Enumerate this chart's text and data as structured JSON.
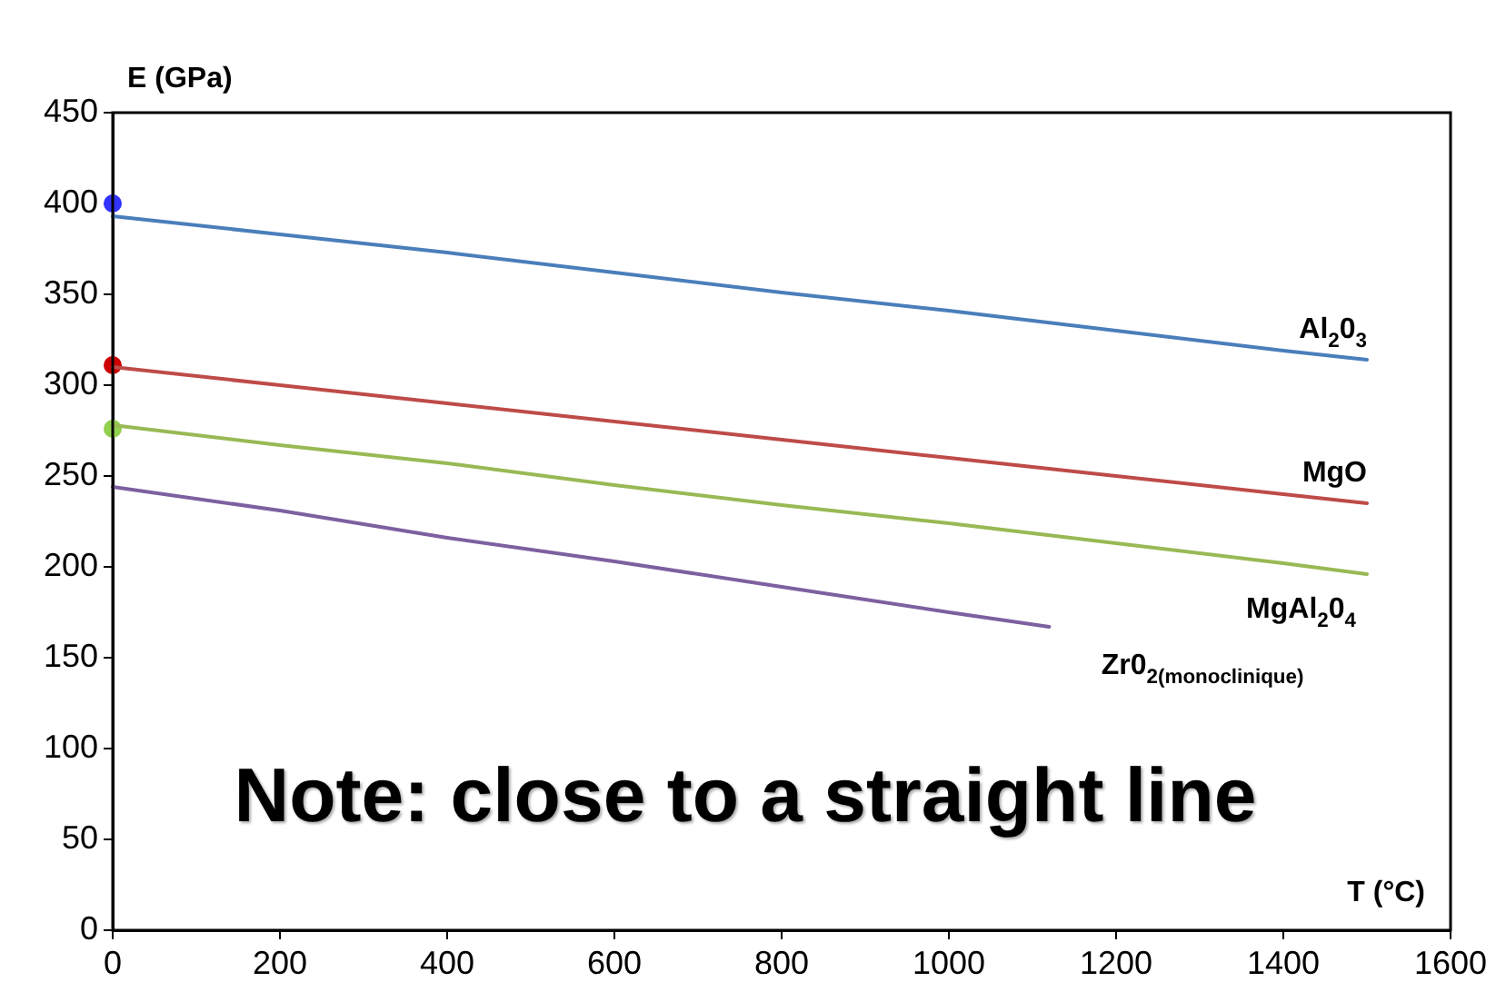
{
  "chart_data": {
    "type": "line",
    "xlabel": "T (°C)",
    "ylabel": "E (GPa)",
    "xlim": [
      0,
      1600
    ],
    "xticks": [
      0,
      200,
      400,
      600,
      800,
      1000,
      1200,
      1400,
      1600
    ],
    "ylim": [
      0,
      450
    ],
    "yticks": [
      0,
      50,
      100,
      150,
      200,
      250,
      300,
      350,
      400,
      450
    ],
    "grid": false,
    "legend": false,
    "line_style": "solid",
    "annotations": [
      "Note: close to a straight line"
    ],
    "series": [
      {
        "name": "Al$_{2}$0$_{3}$",
        "color": "#4a7ebb",
        "x": [
          0,
          200,
          400,
          600,
          800,
          1000,
          1200,
          1400,
          1500
        ],
        "values": [
          393,
          383,
          373,
          362,
          351,
          341,
          330,
          319,
          314
        ]
      },
      {
        "name": "MgO",
        "color": "#be4b48",
        "x": [
          0,
          200,
          400,
          600,
          800,
          1000,
          1200,
          1400,
          1500
        ],
        "values": [
          310,
          300,
          290,
          280,
          270,
          260,
          250,
          240,
          235
        ]
      },
      {
        "name": "MgAl$_{2}$0$_{4}$",
        "color": "#98b954",
        "x": [
          0,
          200,
          400,
          600,
          800,
          1000,
          1200,
          1400,
          1500
        ],
        "values": [
          278,
          267,
          257,
          245,
          234,
          224,
          213,
          202,
          196
        ]
      },
      {
        "name": "Zr0$_{2(monoclinique)}$",
        "color": "#7d60a0",
        "x": [
          0,
          200,
          400,
          600,
          800,
          1000,
          1120
        ],
        "values": [
          244,
          231,
          216,
          203,
          189,
          175,
          167
        ]
      },
      {
        "type": "scatter",
        "marker": "circle",
        "color": "#3333ff",
        "x": [
          0
        ],
        "values": [
          400
        ]
      },
      {
        "type": "scatter",
        "marker": "circle",
        "color": "#cc0000",
        "x": [
          0
        ],
        "values": [
          311
        ]
      },
      {
        "type": "scatter",
        "marker": "circle",
        "color": "#92d050",
        "x": [
          0
        ],
        "values": [
          276
        ]
      }
    ]
  }
}
